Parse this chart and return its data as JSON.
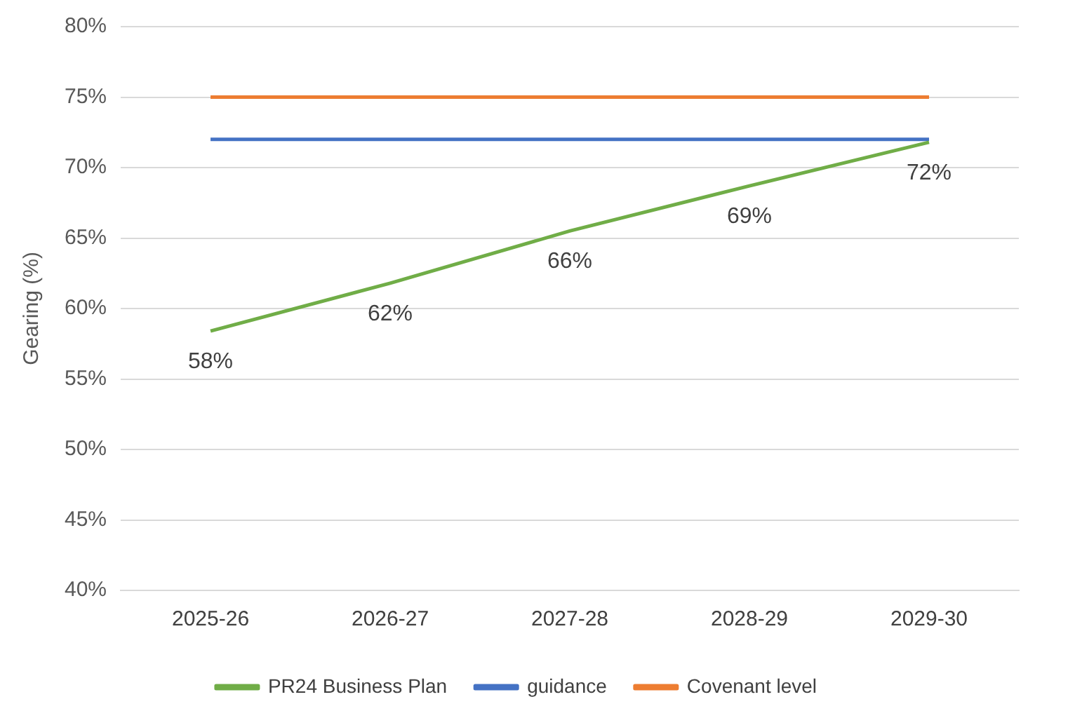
{
  "chart_data": {
    "type": "line",
    "ylabel": "Gearing (%)",
    "categories": [
      "2025-26",
      "2026-27",
      "2027-28",
      "2028-29",
      "2029-30"
    ],
    "series": [
      {
        "name": "PR24 Business Plan",
        "color": "#70ad47",
        "values": [
          58.4,
          61.8,
          65.5,
          68.7,
          71.8
        ],
        "value_labels": [
          "58%",
          "62%",
          "66%",
          "69%",
          "72%"
        ]
      },
      {
        "name": "guidance",
        "color": "#4472c4",
        "values": [
          72,
          72,
          72,
          72,
          72
        ]
      },
      {
        "name": "Covenant level",
        "color": "#ed7d31",
        "values": [
          75,
          75,
          75,
          75,
          75
        ]
      }
    ],
    "ylim": [
      40,
      80
    ],
    "yticks": [
      {
        "value": 40,
        "label": "40%"
      },
      {
        "value": 45,
        "label": "45%"
      },
      {
        "value": 50,
        "label": "50%"
      },
      {
        "value": 55,
        "label": "55%"
      },
      {
        "value": 60,
        "label": "60%"
      },
      {
        "value": 65,
        "label": "65%"
      },
      {
        "value": 70,
        "label": "70%"
      },
      {
        "value": 75,
        "label": "75%"
      },
      {
        "value": 80,
        "label": "80%"
      }
    ],
    "grid": "y",
    "legend": "bottom",
    "marker": "none",
    "line_style": "solid"
  }
}
